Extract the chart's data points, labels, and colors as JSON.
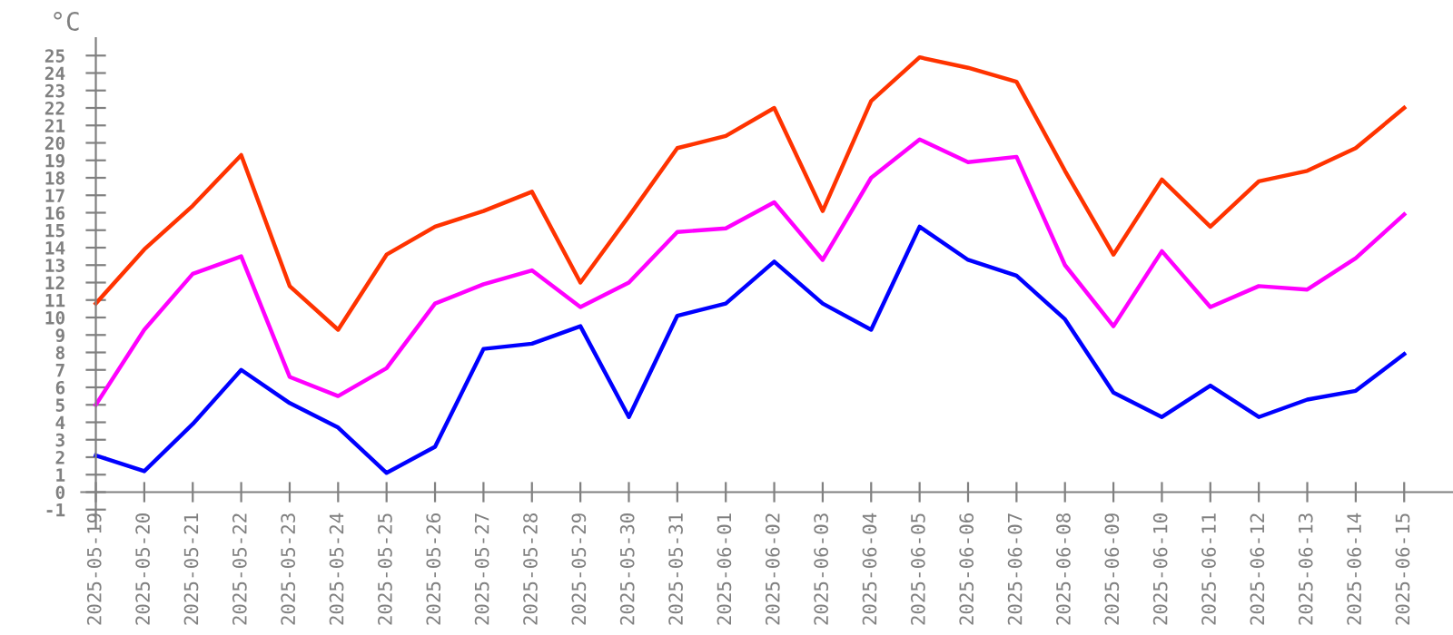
{
  "chart_data": {
    "type": "line",
    "ylabel": "°C",
    "categories": [
      "2025-05-19",
      "2025-05-20",
      "2025-05-21",
      "2025-05-22",
      "2025-05-23",
      "2025-05-24",
      "2025-05-25",
      "2025-05-26",
      "2025-05-27",
      "2025-05-28",
      "2025-05-29",
      "2025-05-30",
      "2025-05-31",
      "2025-06-01",
      "2025-06-02",
      "2025-06-03",
      "2025-06-04",
      "2025-06-05",
      "2025-06-06",
      "2025-06-07",
      "2025-06-08",
      "2025-06-09",
      "2025-06-10",
      "2025-06-11",
      "2025-06-12",
      "2025-06-13",
      "2025-06-14",
      "2025-06-15"
    ],
    "series": [
      {
        "color": "#ff3300",
        "values": [
          10.8,
          13.9,
          16.4,
          19.3,
          11.8,
          9.3,
          13.6,
          15.2,
          16.1,
          17.2,
          12.0,
          15.8,
          19.7,
          20.4,
          22.0,
          16.1,
          22.4,
          24.9,
          24.3,
          23.5,
          18.4,
          13.6,
          17.9,
          15.2,
          17.8,
          18.4,
          19.7,
          22.0
        ]
      },
      {
        "color": "#ff00ff",
        "values": [
          5.0,
          9.3,
          12.5,
          13.5,
          6.6,
          5.5,
          7.1,
          10.8,
          11.9,
          12.7,
          10.6,
          12.0,
          14.9,
          15.1,
          16.6,
          13.3,
          18.0,
          20.2,
          18.9,
          19.2,
          13.0,
          9.5,
          13.8,
          10.6,
          11.8,
          11.6,
          13.4,
          15.9
        ]
      },
      {
        "color": "#0000ff",
        "values": [
          2.1,
          1.2,
          3.9,
          7.0,
          5.1,
          3.7,
          1.1,
          2.6,
          8.2,
          8.5,
          9.5,
          4.3,
          10.1,
          10.8,
          13.2,
          10.8,
          9.3,
          15.2,
          13.3,
          12.4,
          9.9,
          5.7,
          4.3,
          6.1,
          4.3,
          5.3,
          5.8,
          7.9
        ]
      }
    ],
    "ylim": [
      -2,
      26
    ],
    "yticks": [
      -1,
      0,
      1,
      2,
      3,
      4,
      5,
      6,
      7,
      8,
      9,
      10,
      11,
      12,
      13,
      14,
      15,
      16,
      17,
      18,
      19,
      20,
      21,
      22,
      23,
      24,
      25
    ],
    "grid": false,
    "legend": false,
    "marker": "none",
    "line_style": "solid"
  }
}
